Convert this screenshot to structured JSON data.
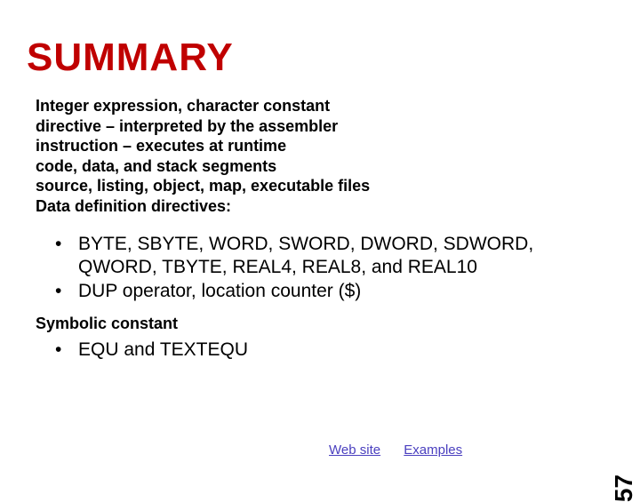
{
  "title": {
    "text": "SUMMARY",
    "color": "#c00000",
    "fontsize": 44,
    "weight": 900
  },
  "intro": {
    "lines": [
      "Integer expression, character constant",
      "directive – interpreted by the assembler",
      "instruction – executes at runtime",
      "code, data, and stack segments",
      "source, listing, object, map, executable files",
      "Data definition directives:"
    ],
    "fontsize": 18,
    "weight": 700,
    "color": "#000000"
  },
  "bullets_types": {
    "items": [
      "BYTE, SBYTE, WORD, SWORD, DWORD, SDWORD, QWORD, TBYTE, REAL4, REAL8, and REAL10",
      "DUP operator, location counter ($)"
    ],
    "fontsize": 21,
    "color": "#000000",
    "bullet": "•"
  },
  "symbolic": {
    "text": "Symbolic constant",
    "fontsize": 18,
    "weight": 700,
    "color": "#000000"
  },
  "bullets_equ": {
    "items": [
      "EQU and TEXTEQU"
    ],
    "fontsize": 21,
    "color": "#000000",
    "bullet": "•"
  },
  "links": {
    "items": [
      "Web site",
      "Examples"
    ],
    "color": "#4a3fbf",
    "fontsize": 15
  },
  "page_number": {
    "value": "57",
    "fontsize": 28,
    "color": "#000000"
  },
  "background_color": "#ffffff"
}
